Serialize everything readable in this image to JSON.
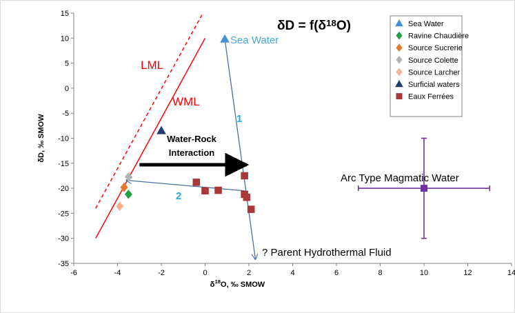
{
  "chart_data": {
    "type": "scatter",
    "title": "δD = f(δ18O)",
    "title_parts": {
      "prefix": "δD = f(δ",
      "sup": "18",
      "suffix": "O)"
    },
    "xlabel": "δ18O, ‰ SMOW",
    "xlabel_parts": {
      "prefix": "δ",
      "sup": "18",
      "suffix": "O, ‰ SMOW"
    },
    "ylabel": "δD, ‰ SMOW",
    "xlim": [
      -6,
      14
    ],
    "ylim": [
      -35,
      15
    ],
    "x_ticks": [
      "-6",
      "-4",
      "-2",
      "0",
      "2",
      "4",
      "6",
      "8",
      "10",
      "12",
      "14"
    ],
    "y_ticks": [
      "15",
      "10",
      "5",
      "0",
      "-5",
      "-10",
      "-15",
      "-20",
      "-25",
      "-30",
      "-35"
    ],
    "grid": false,
    "legend_position": "top-right",
    "series": [
      {
        "name": "Sea Water",
        "marker": "triangle",
        "color": "#4a90d0",
        "points": [
          [
            0.9,
            9.8
          ]
        ]
      },
      {
        "name": "Ravine Chaudière",
        "marker": "diamond",
        "color": "#1fa046",
        "points": [
          [
            -3.5,
            -21.2
          ]
        ]
      },
      {
        "name": "Source Sucrerie",
        "marker": "diamond",
        "color": "#e07b2a",
        "points": [
          [
            -3.7,
            -19.8
          ]
        ]
      },
      {
        "name": "Source Colette",
        "marker": "diamond",
        "color": "#b3b3b3",
        "points": [
          [
            -3.5,
            -17.7
          ]
        ]
      },
      {
        "name": "Source Larcher",
        "marker": "diamond",
        "color": "#f2b28c",
        "points": [
          [
            -3.9,
            -23.6
          ]
        ]
      },
      {
        "name": "Surficial waters",
        "marker": "triangle",
        "color": "#1f3c6e",
        "points": [
          [
            -2.0,
            -8.5
          ]
        ]
      },
      {
        "name": "Eaux Ferrées",
        "marker": "square",
        "color": "#a8393b",
        "points": [
          [
            -0.4,
            -18.8
          ],
          [
            0.0,
            -20.5
          ],
          [
            0.6,
            -20.4
          ],
          [
            1.8,
            -17.5
          ],
          [
            1.8,
            -21.2
          ],
          [
            1.9,
            -21.8
          ],
          [
            2.1,
            -24.2
          ]
        ]
      }
    ],
    "lines": [
      {
        "label": "LML",
        "style": "dashed",
        "color": "#ff0000",
        "from": [
          -5,
          -24
        ],
        "to": [
          -0.1,
          15
        ]
      },
      {
        "label": "WML",
        "style": "solid",
        "color": "#ff0000",
        "from": [
          -5,
          -30
        ],
        "to": [
          0,
          10
        ]
      }
    ],
    "annotations": {
      "sea_water_label": "Sea Water",
      "arrow1_label": "1",
      "arrow2_label": "2",
      "interaction_line1": "Water-Rock",
      "interaction_line2": "Interaction",
      "parent_fluid": "? Parent Hydrothermal Fluid",
      "arc_label": "Arc Type Magmatic Water"
    },
    "arc_magmatic_water": {
      "x": 10,
      "y": -20,
      "x_range": [
        7,
        13
      ],
      "y_range": [
        -30,
        -10
      ],
      "color": "#7030a0"
    },
    "arrows": [
      {
        "id": "1",
        "from": [
          0.9,
          9.8
        ],
        "to": [
          2.3,
          -34.2
        ],
        "color": "#4a6fa5"
      },
      {
        "id": "2",
        "from": [
          1.8,
          -20.5
        ],
        "to": [
          -3.6,
          -18.4
        ],
        "color": "#4a6fa5"
      },
      {
        "id": "water-rock",
        "from": [
          -3.0,
          -15.3
        ],
        "to": [
          1.9,
          -15.3
        ],
        "color": "#000000"
      }
    ]
  }
}
